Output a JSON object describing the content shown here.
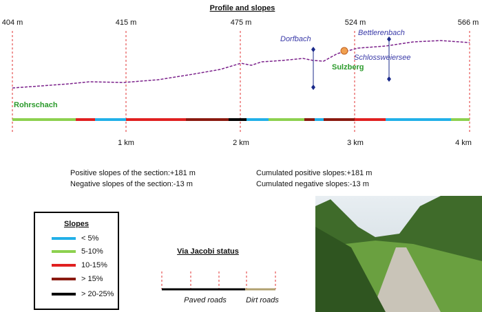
{
  "title": "Profile and slopes",
  "elevation_labels": [
    "404 m",
    "415 m",
    "475 m",
    "524 m",
    "566 m"
  ],
  "distance_labels": [
    "1 km",
    "2 km",
    "3 km",
    "4 km"
  ],
  "places": {
    "start": "Rohrschach",
    "village": "Sulzberg",
    "streams": [
      "Dorfbach",
      "Bettlerenbach"
    ],
    "lake": "Schlossweiersee"
  },
  "stats": {
    "section_positive": "Positive slopes of the section:+181 m",
    "section_negative": "Negative slopes of the section:-13 m",
    "cumulated_positive": "Cumulated positive slopes:+181 m",
    "cumulated_negative": "Cumulated negative slopes:-13 m"
  },
  "legend": {
    "title": "Slopes",
    "items": [
      "< 5%",
      "5-10%",
      "10-15%",
      "> 15%",
      "> 20-25%"
    ]
  },
  "status": {
    "title": "Via Jacobi status",
    "paved": "Paved roads",
    "dirt": "Dirt roads"
  }
}
